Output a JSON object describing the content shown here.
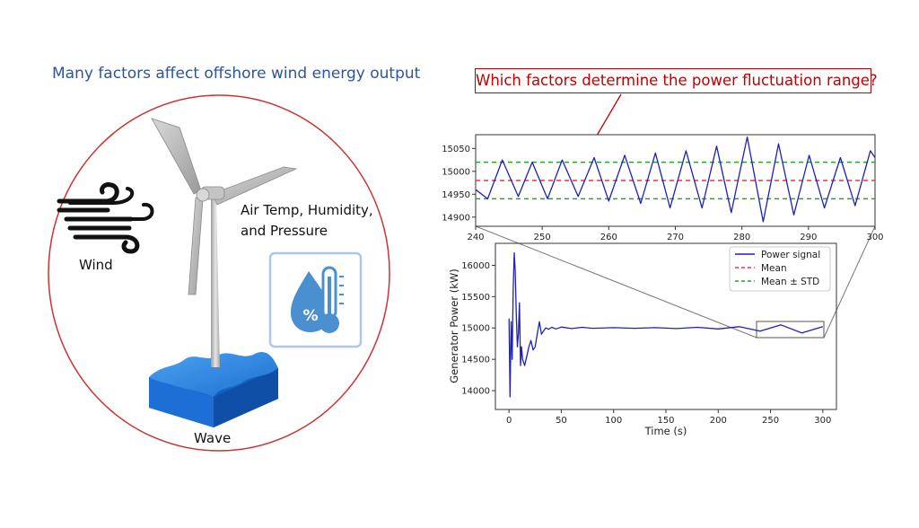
{
  "left_panel": {
    "title": "Many factors affect offshore wind energy output",
    "wind_label": "Wind",
    "wave_label": "Wave",
    "air_label_line1": "Air Temp, Humidity,",
    "air_label_line2": "and Pressure",
    "humidity_glyph": "%",
    "icons": [
      "wind-icon",
      "wind-turbine-icon",
      "wave-block-icon",
      "humidity-thermometer-icon"
    ]
  },
  "question": "Which factors determine the power fluctuation range?",
  "colors": {
    "title_blue": "#2f5597",
    "question_red": "#c00000",
    "signal": "#1f1fbf",
    "mean": "#e8383d",
    "std": "#2ca02c"
  },
  "chart_data": [
    {
      "type": "line",
      "panel": "zoom",
      "xlim": [
        240,
        300
      ],
      "ylim": [
        14880,
        15080
      ],
      "xticks": [
        240,
        250,
        260,
        270,
        280,
        290,
        300
      ],
      "yticks": [
        14900,
        14950,
        15000,
        15050
      ],
      "mean": 14980,
      "std_band": [
        14940,
        15020
      ],
      "series": [
        {
          "name": "Power signal",
          "x": [
            240.0,
            241.8,
            244.0,
            246.4,
            248.5,
            250.8,
            253.0,
            255.4,
            257.8,
            260.0,
            262.4,
            264.8,
            267.0,
            269.2,
            271.6,
            274.0,
            276.2,
            278.4,
            280.8,
            283.2,
            285.5,
            287.8,
            290.1,
            292.4,
            294.8,
            297.0,
            299.3,
            300.0
          ],
          "y": [
            14960,
            14940,
            15025,
            14945,
            15020,
            14940,
            15025,
            14945,
            15030,
            14935,
            15035,
            14930,
            15040,
            14920,
            15045,
            14920,
            15055,
            14910,
            15075,
            14890,
            15060,
            14905,
            15035,
            14920,
            15030,
            14925,
            15045,
            15030
          ]
        }
      ]
    },
    {
      "type": "line",
      "panel": "full",
      "xlabel": "Time (s)",
      "ylabel": "Generator Power (kW)",
      "xlim": [
        -13,
        313
      ],
      "ylim": [
        13700,
        16350
      ],
      "xticks": [
        0,
        50,
        100,
        150,
        200,
        250,
        300
      ],
      "yticks": [
        14000,
        14500,
        15000,
        15500,
        16000
      ],
      "legend": [
        "Power signal",
        "Mean",
        "Mean ± STD"
      ],
      "legend_position": "top-right",
      "series": [
        {
          "name": "Power signal",
          "x": [
            0,
            1,
            2,
            3,
            4,
            5,
            6,
            7,
            8,
            9,
            10,
            11,
            12,
            13,
            15,
            17,
            19,
            21,
            23,
            25,
            27,
            29,
            31,
            33,
            35,
            38,
            41,
            45,
            50,
            60,
            70,
            80,
            100,
            120,
            140,
            160,
            180,
            200,
            220,
            240,
            260,
            280,
            300
          ],
          "y": [
            15150,
            13900,
            15100,
            14500,
            15600,
            16200,
            15900,
            15200,
            14700,
            14900,
            15400,
            14400,
            14700,
            14500,
            14400,
            14550,
            14700,
            14800,
            14650,
            14700,
            14900,
            15100,
            14900,
            14950,
            15000,
            14980,
            15010,
            14985,
            15015,
            14990,
            15010,
            14995,
            15005,
            14995,
            15005,
            14990,
            15010,
            14985,
            15020,
            14950,
            15050,
            14920,
            15020
          ]
        }
      ]
    }
  ]
}
